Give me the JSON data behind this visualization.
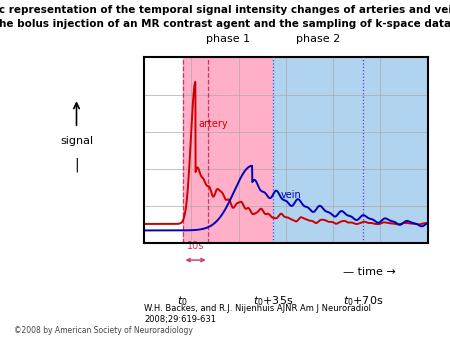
{
  "title_line1": "Schematic representation of the temporal signal intensity changes of arteries and veins due to",
  "title_line2": "the bolus injection of an MR contrast agent and the sampling of k-space data.",
  "title_fontsize": 7.5,
  "background_color": "#ffffff",
  "plot_bg_color_phase1": "#ffb0c8",
  "plot_bg_color_phase2": "#b0d4f0",
  "artery_color": "#cc0000",
  "vein_color": "#0000bb",
  "dashed_vline_color_t0": "#cc3366",
  "dashed_vline_color_phase": "#6633cc",
  "grid_color": "#aaaaaa",
  "footer": "W.H. Backes, and R.J. Nijenhuis AJNR Am J Neuroradiol\n2008;29:619-631",
  "copyright": "©2008 by American Society of Neuroradiology",
  "phase1_label": "phase 1",
  "phase2_label": "phase 2",
  "time_label": "— time →",
  "signal_label": "signal",
  "artery_label": "artery",
  "vein_label": "vein",
  "t0_label": "t₀",
  "t35_label": "t₀+35s",
  "t70_label": "t₀+70s",
  "label_10s": "10s"
}
